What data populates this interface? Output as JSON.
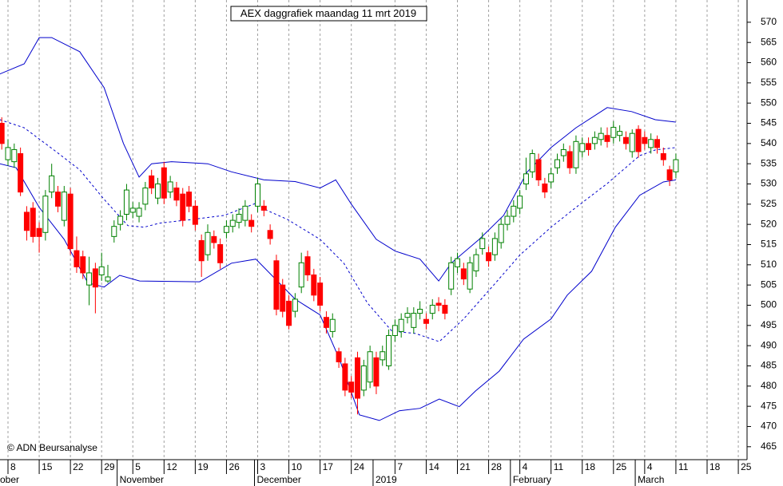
{
  "chart_data": {
    "type": "candlestick",
    "title": "AEX daggrafiek maandag 11 mrt 2019",
    "annotation": "© ADN Beursanalyse",
    "up_color": "#008000",
    "down_color": "#ff0000",
    "xlim": [
      -1.28,
      118.4
    ],
    "ylim": [
      461.8,
      575.5
    ],
    "yticks": [
      465,
      470,
      475,
      480,
      485,
      490,
      495,
      500,
      505,
      510,
      515,
      520,
      525,
      530,
      535,
      540,
      545,
      550,
      555,
      560,
      565,
      570
    ],
    "xticks": [
      {
        "value": 0,
        "label": "8"
      },
      {
        "value": 5,
        "label": "15"
      },
      {
        "value": 10,
        "label": "22"
      },
      {
        "value": 15,
        "label": "29"
      },
      {
        "value": 20,
        "label": "5"
      },
      {
        "value": 25,
        "label": "12"
      },
      {
        "value": 30,
        "label": "19"
      },
      {
        "value": 35,
        "label": "26"
      },
      {
        "value": 40,
        "label": "3"
      },
      {
        "value": 45,
        "label": "10"
      },
      {
        "value": 50,
        "label": "17"
      },
      {
        "value": 55,
        "label": "24"
      },
      {
        "value": 62,
        "label": "7"
      },
      {
        "value": 67,
        "label": "14"
      },
      {
        "value": 72,
        "label": "21"
      },
      {
        "value": 77,
        "label": "28"
      },
      {
        "value": 82,
        "label": "4"
      },
      {
        "value": 87,
        "label": "11"
      },
      {
        "value": 92,
        "label": "18"
      },
      {
        "value": 97,
        "label": "25"
      },
      {
        "value": 102,
        "label": "4"
      },
      {
        "value": 107,
        "label": "11"
      },
      {
        "value": 112,
        "label": "18"
      },
      {
        "value": 117,
        "label": "25"
      }
    ],
    "month_ticks": [
      {
        "value": -5,
        "label": "ober"
      },
      {
        "value": 18,
        "label": "November"
      },
      {
        "value": 40,
        "label": "December"
      },
      {
        "value": 59,
        "label": "2019"
      },
      {
        "value": 81,
        "label": "February"
      },
      {
        "value": 101,
        "label": "March"
      }
    ],
    "x": [
      -1,
      0,
      1,
      2,
      3,
      4,
      5,
      6,
      7,
      8,
      9,
      10,
      11,
      12,
      13,
      14,
      15,
      16,
      17,
      18,
      19,
      20,
      21,
      22,
      23,
      24,
      25,
      26,
      27,
      28,
      29,
      30,
      31,
      32,
      33,
      34,
      35,
      36,
      37,
      38,
      39,
      40,
      41,
      42,
      43,
      44,
      45,
      46,
      47,
      48,
      49,
      50,
      51,
      52,
      53,
      54,
      55,
      56,
      57,
      58,
      59,
      60,
      61,
      62,
      63,
      64,
      65,
      66,
      67,
      68,
      69,
      70,
      71,
      72,
      73,
      74,
      75,
      76,
      77,
      78,
      79,
      80,
      81,
      82,
      83,
      84,
      85,
      86,
      87,
      88,
      89,
      90,
      91,
      92,
      93,
      94,
      95,
      96,
      97,
      98,
      99,
      100,
      101,
      102,
      103,
      104,
      105,
      106,
      107
    ],
    "open": [
      545,
      536,
      535.5,
      537.5,
      523,
      524,
      519,
      518,
      528,
      528,
      521,
      527.5,
      513.5,
      512,
      505,
      509,
      507.5,
      506,
      517,
      520,
      522.5,
      523,
      522,
      525,
      532,
      526.5,
      534,
      528,
      529,
      527.5,
      528,
      524.5,
      516,
      512.5,
      517,
      515,
      518,
      519.5,
      520.5,
      521,
      521,
      524.5,
      524.5,
      518.5,
      511,
      505,
      501,
      498.5,
      504.5,
      512,
      507.5,
      505.5,
      497,
      493.5,
      488.5,
      485.5,
      481,
      487,
      479,
      481,
      487,
      486.5,
      485,
      492.5,
      493.5,
      497,
      494.5,
      498,
      496.5,
      498,
      500.5,
      500,
      504,
      509.5,
      509,
      504,
      508.5,
      514,
      513,
      512.5,
      515.5,
      520,
      522,
      524,
      530,
      533,
      536,
      530,
      530.5,
      534,
      537,
      538,
      534,
      538,
      540,
      540,
      541,
      542,
      541.5,
      542,
      541.5,
      538,
      543.5,
      541.5,
      539,
      541,
      537.5,
      533.5,
      533
    ],
    "high": [
      546.5,
      541,
      540,
      539,
      524.5,
      525.5,
      520.5,
      528.5,
      535,
      529.5,
      529.5,
      529,
      517,
      513.5,
      512,
      510.5,
      513,
      510,
      521,
      523.5,
      530,
      525.5,
      525.5,
      530.5,
      533.5,
      531.5,
      535.5,
      532,
      530.5,
      529,
      529.5,
      526,
      517.5,
      520,
      518.5,
      516.5,
      521,
      522.5,
      524,
      526,
      522.5,
      531.5,
      526,
      520,
      512.5,
      506.5,
      502.5,
      503,
      513,
      513.5,
      509,
      507,
      498.5,
      498,
      489.5,
      487,
      482.5,
      488.5,
      486.5,
      490,
      488.5,
      490,
      494,
      496.5,
      498,
      499.5,
      499.5,
      501,
      498,
      501.5,
      502,
      501.5,
      512,
      513,
      510.5,
      512,
      514,
      518,
      514.5,
      518,
      521.5,
      523.5,
      526,
      528.5,
      536.5,
      538.5,
      537.5,
      531.5,
      534,
      537.5,
      540,
      539.5,
      542,
      541.5,
      541.5,
      543,
      544,
      544,
      545.5,
      544.5,
      543,
      543.5,
      544.5,
      543,
      542.5,
      542,
      539,
      534.5,
      537.5
    ],
    "low": [
      538.5,
      534.5,
      534,
      527,
      516,
      515.5,
      513,
      516,
      526.5,
      523,
      519.5,
      512.5,
      508,
      506.5,
      500,
      498,
      506,
      505.5,
      515.5,
      518.5,
      521,
      521.5,
      520.5,
      523.5,
      527.5,
      525,
      525,
      526.5,
      524.5,
      519.5,
      523,
      518.5,
      507,
      511,
      514,
      509,
      516.5,
      518,
      519,
      519.5,
      518,
      523,
      522,
      515,
      497.5,
      497,
      494,
      497,
      503,
      506,
      501,
      498.5,
      493,
      492,
      484.5,
      477.5,
      477,
      473,
      477.5,
      479.5,
      478,
      485,
      484,
      491,
      492,
      495.5,
      493,
      496.5,
      494,
      496.5,
      498.5,
      496.5,
      502.5,
      508,
      505,
      503,
      507,
      512.5,
      509.5,
      511,
      514,
      518.5,
      520.5,
      522.5,
      528.5,
      531.5,
      529.5,
      526.5,
      529,
      532.5,
      535.5,
      532.5,
      532.5,
      536.5,
      537,
      538.5,
      539.5,
      539,
      540,
      540.5,
      538.5,
      536.5,
      536.5,
      538.5,
      537.5,
      537.5,
      534.5,
      529.5,
      531.5
    ],
    "close": [
      540,
      539,
      538.5,
      528,
      518.5,
      517,
      517,
      527,
      532,
      524.5,
      528,
      514,
      509.5,
      508,
      508,
      504.5,
      509.5,
      507,
      519.5,
      522,
      528.5,
      524,
      524,
      529,
      529,
      530,
      526.5,
      530.5,
      526,
      521,
      524.5,
      520,
      511,
      518,
      515.5,
      510.5,
      519.5,
      521,
      522.5,
      524.5,
      519.5,
      530,
      523.5,
      516.5,
      499,
      498.5,
      495,
      501.5,
      510.5,
      507.5,
      502.5,
      500,
      494.5,
      496.5,
      486,
      479,
      478.5,
      477,
      485,
      488.5,
      480,
      488.5,
      492.5,
      495,
      496.5,
      498,
      498,
      499,
      495.5,
      500,
      500,
      498,
      510.5,
      511.5,
      506.5,
      510.5,
      512.5,
      516.5,
      511,
      516.5,
      520,
      522,
      524.5,
      527,
      532.5,
      537.5,
      531,
      528,
      532.5,
      536,
      538.5,
      534,
      540.5,
      540,
      538.5,
      541.5,
      542.5,
      540.5,
      544,
      543,
      540,
      542.5,
      538,
      540,
      541,
      539,
      536,
      531,
      536
    ],
    "lines": [
      {
        "color": "#0000cc",
        "dashed": false,
        "x": [
          -1.3,
          2.6,
          5,
          7,
          11.5,
          15.4,
          18.5,
          21,
          23,
          26.2,
          32,
          35.8,
          41,
          46,
          50,
          52.5,
          55,
          59,
          62,
          66,
          69,
          71,
          75.5,
          79.4,
          83.2,
          87,
          91,
          96,
          99.9,
          103.7,
          107
        ],
        "values": [
          557.2,
          559.7,
          566.2,
          566.2,
          562.7,
          553.8,
          540,
          531.7,
          535,
          535.5,
          535,
          533,
          531,
          530.6,
          529,
          531,
          525,
          516.3,
          513.4,
          511.4,
          506,
          510.4,
          516.3,
          522.2,
          533,
          539,
          543.9,
          548.9,
          547.9,
          545.9,
          545.3
        ]
      },
      {
        "color": "#0000cc",
        "dashed": true,
        "x": [
          -1.3,
          2.6,
          7.7,
          11.5,
          15.4,
          19.2,
          21.8,
          24.3,
          29.4,
          34.6,
          39.7,
          41,
          44.8,
          50,
          53.8,
          57.6,
          61.5,
          65.3,
          69.1,
          73,
          78.1,
          82,
          87,
          91,
          96,
          101.2,
          103.7,
          107
        ],
        "values": [
          545.9,
          543.9,
          538,
          533.5,
          526.2,
          519.7,
          519.3,
          520.3,
          521.2,
          522.2,
          525.2,
          523.8,
          521.2,
          516.3,
          510.4,
          500.5,
          493.6,
          493,
          491,
          496.6,
          505.5,
          512.4,
          519.3,
          524.2,
          530.1,
          537,
          538.4,
          539
        ]
      },
      {
        "color": "#0000cc",
        "dashed": false,
        "x": [
          -1.3,
          1.3,
          5,
          9,
          12.8,
          15.4,
          17.9,
          21.1,
          30.7,
          35.8,
          39.7,
          42.9,
          46,
          50,
          53.1,
          56.3,
          59.5,
          62.7,
          66,
          69.1,
          72.3,
          74.9,
          78.7,
          82.6,
          87,
          89.6,
          93.5,
          97.3,
          101.2,
          105,
          107
        ],
        "values": [
          535,
          534,
          524.2,
          516.3,
          505.5,
          504.5,
          507.4,
          506,
          505.8,
          510.4,
          511.4,
          506.4,
          501.5,
          497.6,
          486.7,
          472.9,
          471.5,
          473.9,
          474.5,
          476.8,
          474.9,
          478.8,
          483.7,
          491.6,
          496.6,
          502.5,
          508.4,
          519.3,
          527.2,
          530.5,
          531
        ]
      }
    ]
  }
}
